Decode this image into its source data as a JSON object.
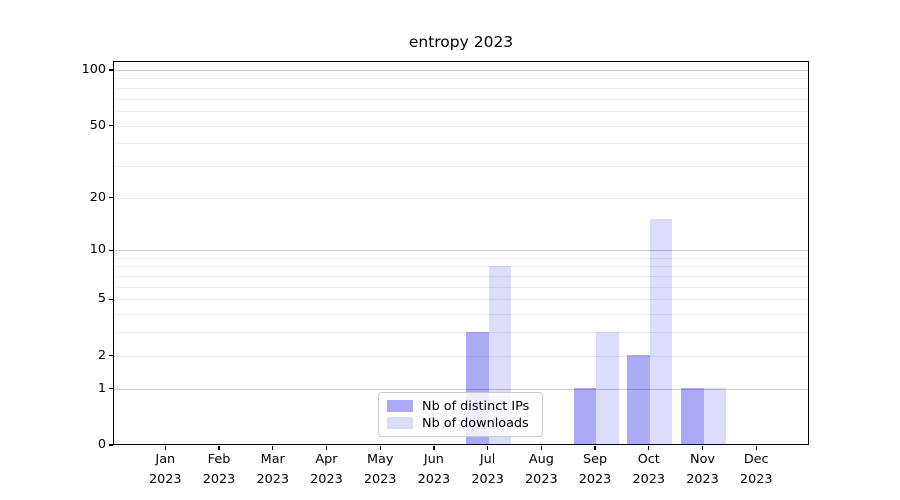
{
  "chart_data": {
    "type": "bar",
    "title": "entropy 2023",
    "xlabel": "",
    "ylabel": "",
    "yscale": "log1p",
    "ylim": [
      0,
      112
    ],
    "grid": true,
    "legend_position": "lower center",
    "categories": [
      "Jan",
      "Feb",
      "Mar",
      "Apr",
      "May",
      "Jun",
      "Jul",
      "Aug",
      "Sep",
      "Oct",
      "Nov",
      "Dec"
    ],
    "year_label": "2023",
    "y_tick_labels": [
      0,
      1,
      2,
      5,
      10,
      20,
      50,
      100
    ],
    "grid_major_values": [
      1,
      10,
      100
    ],
    "grid_minor_values": [
      2,
      3,
      4,
      5,
      6,
      7,
      8,
      9,
      20,
      30,
      40,
      50,
      60,
      70,
      80,
      90
    ],
    "series": [
      {
        "name": "Nb of distinct IPs",
        "color": "#0000e755",
        "values": [
          0,
          0,
          0,
          0,
          0,
          0,
          3,
          0,
          1,
          2,
          1,
          0
        ]
      },
      {
        "name": "Nb of downloads",
        "color": "#0000e423",
        "values": [
          0,
          0,
          0,
          0,
          0,
          0,
          8,
          0,
          3,
          15,
          1,
          0
        ]
      }
    ]
  },
  "colors": {
    "grid_major": "#c9c9c9",
    "grid_minor": "#ececec",
    "spine": "#000000",
    "text": "#000000",
    "legend_border": "#cccccc"
  }
}
